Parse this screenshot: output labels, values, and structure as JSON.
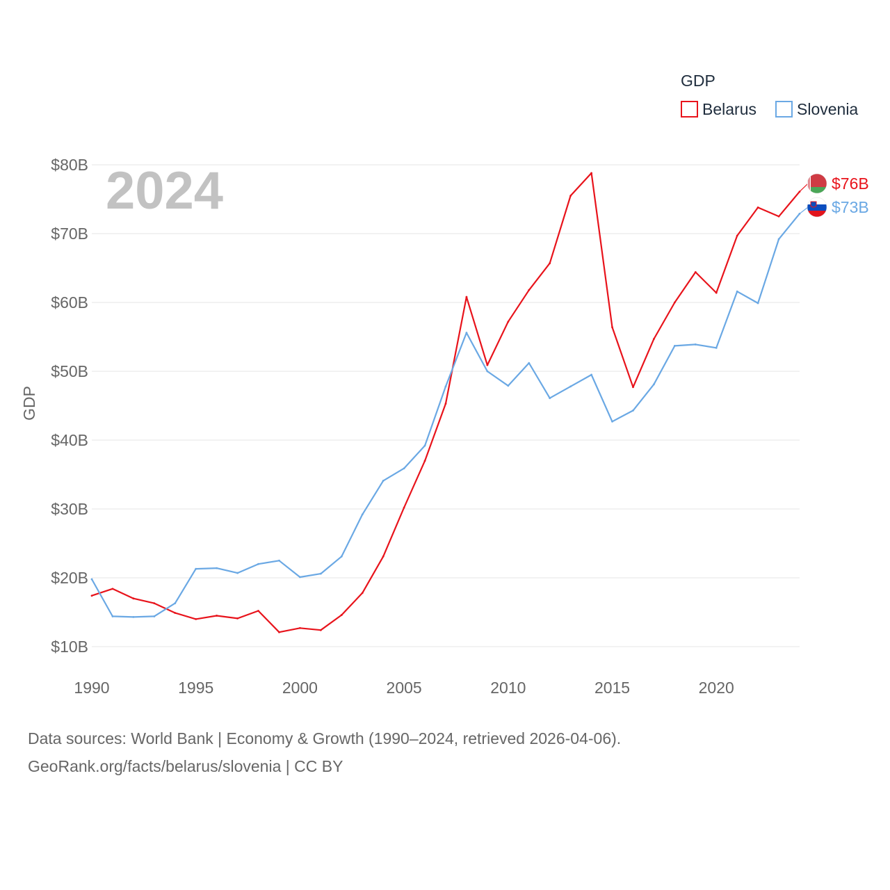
{
  "chart_data": {
    "type": "line",
    "title": "GDP",
    "ylabel": "GDP",
    "watermark": "2024",
    "xlim": [
      1990,
      2024
    ],
    "ylim": [
      8,
      82
    ],
    "x_ticks": [
      1990,
      1995,
      2000,
      2005,
      2010,
      2015,
      2020
    ],
    "x_tick_labels": [
      "1990",
      "1995",
      "2000",
      "2005",
      "2010",
      "2015",
      "2020"
    ],
    "y_ticks": [
      10,
      20,
      30,
      40,
      50,
      60,
      70,
      80
    ],
    "y_tick_labels": [
      "$10B",
      "$20B",
      "$30B",
      "$40B",
      "$50B",
      "$60B",
      "$70B",
      "$80B"
    ],
    "grid": true,
    "legend_position": "top-right",
    "x": [
      1990,
      1991,
      1992,
      1993,
      1994,
      1995,
      1996,
      1997,
      1998,
      1999,
      2000,
      2001,
      2002,
      2003,
      2004,
      2005,
      2006,
      2007,
      2008,
      2009,
      2010,
      2011,
      2012,
      2013,
      2014,
      2015,
      2016,
      2017,
      2018,
      2019,
      2020,
      2021,
      2022,
      2023,
      2024
    ],
    "series": [
      {
        "name": "Belarus",
        "color": "#e8131b",
        "end_label": "$76B",
        "flag": "belarus-flag-icon",
        "values": [
          17.4,
          18.4,
          17.0,
          16.3,
          14.9,
          14.0,
          14.5,
          14.1,
          15.2,
          12.1,
          12.7,
          12.4,
          14.6,
          17.8,
          23.1,
          30.2,
          37.0,
          45.3,
          60.8,
          50.9,
          57.2,
          61.8,
          65.7,
          75.5,
          78.8,
          56.4,
          47.7,
          54.7,
          60.0,
          64.4,
          61.4,
          69.7,
          73.8,
          72.5,
          76.1
        ]
      },
      {
        "name": "Slovenia",
        "color": "#6aa8e4",
        "end_label": "$73B",
        "flag": "slovenia-flag-icon",
        "values": [
          19.8,
          14.4,
          14.3,
          14.4,
          16.3,
          21.3,
          21.4,
          20.7,
          22.0,
          22.5,
          20.1,
          20.6,
          23.1,
          29.2,
          34.1,
          35.9,
          39.2,
          47.8,
          55.6,
          50.0,
          47.9,
          51.2,
          46.1,
          47.8,
          49.5,
          42.7,
          44.3,
          48.1,
          53.7,
          53.9,
          53.4,
          61.6,
          59.9,
          69.2,
          72.9
        ]
      }
    ]
  },
  "footer": {
    "line1": "Data sources: World Bank | Economy & Growth (1990–2024, retrieved 2026-04-06).",
    "line2": "GeoRank.org/facts/belarus/slovenia | CC BY"
  }
}
